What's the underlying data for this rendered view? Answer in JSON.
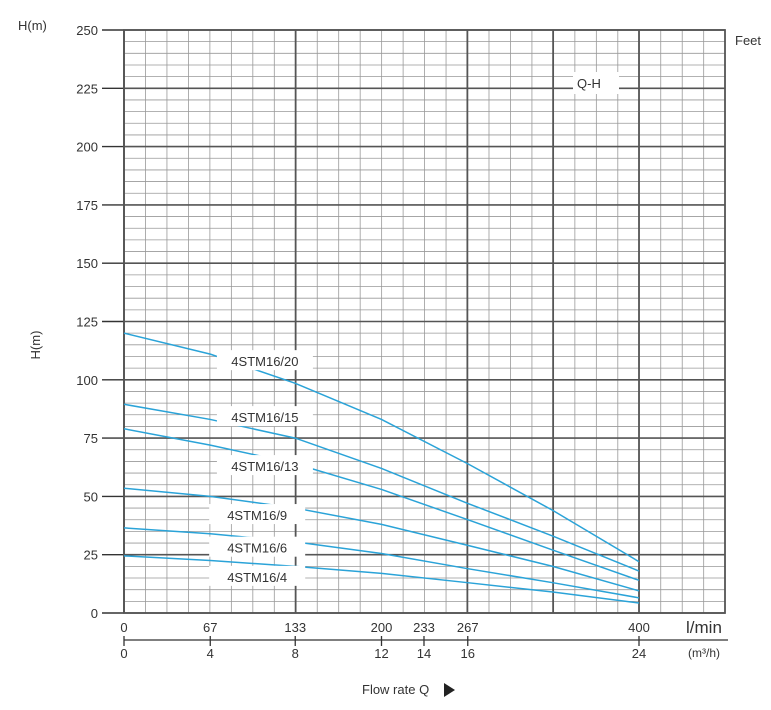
{
  "chart_data": {
    "type": "line",
    "title": "Q-H",
    "ylabel": "H(m)",
    "ylabel_top": "H(m)",
    "right_label": "Feet",
    "xlabel": "Flow rate Q",
    "x_unit": "l/min",
    "x2_unit": "(m³/h)",
    "ylim": [
      0,
      250
    ],
    "xlim": [
      0,
      467
    ],
    "yticks": [
      0,
      25,
      50,
      75,
      100,
      125,
      150,
      175,
      200,
      225,
      250
    ],
    "xticks": [
      0,
      67,
      133,
      200,
      233,
      267,
      400
    ],
    "x2ticks": [
      {
        "label": "0",
        "lpm": 0
      },
      {
        "label": "4",
        "lpm": 67
      },
      {
        "label": "8",
        "lpm": 133
      },
      {
        "label": "12",
        "lpm": 200
      },
      {
        "label": "14",
        "lpm": 233
      },
      {
        "label": "16",
        "lpm": 267
      },
      {
        "label": "24",
        "lpm": 400
      }
    ],
    "grid": true,
    "series": [
      {
        "name": "4STM16/20",
        "x": [
          0,
          67,
          133,
          200,
          267,
          333,
          400
        ],
        "y": [
          120,
          111,
          98.5,
          83,
          64,
          44,
          22
        ],
        "label_at": [
          111,
          108
        ]
      },
      {
        "name": "4STM16/15",
        "x": [
          0,
          67,
          133,
          200,
          267,
          333,
          400
        ],
        "y": [
          89.5,
          83,
          75,
          62,
          47,
          33,
          18
        ],
        "label_at": [
          111,
          84
        ]
      },
      {
        "name": "4STM16/13",
        "x": [
          0,
          67,
          133,
          200,
          267,
          333,
          400
        ],
        "y": [
          79,
          72,
          64,
          53,
          40,
          27,
          14
        ],
        "label_at": [
          111,
          63
        ]
      },
      {
        "name": "4STM16/9",
        "x": [
          0,
          67,
          133,
          200,
          267,
          333,
          400
        ],
        "y": [
          53.5,
          50,
          45,
          38,
          29,
          20,
          9.5
        ],
        "label_at": [
          105,
          42
        ]
      },
      {
        "name": "4STM16/6",
        "x": [
          0,
          67,
          133,
          200,
          267,
          333,
          400
        ],
        "y": [
          36.5,
          34,
          30.5,
          25.5,
          19,
          13,
          6.5
        ],
        "label_at": [
          105,
          28
        ]
      },
      {
        "name": "4STM16/4",
        "x": [
          0,
          67,
          133,
          200,
          267,
          333,
          400
        ],
        "y": [
          24.5,
          22.5,
          20,
          17,
          13,
          9,
          4.3
        ],
        "label_at": [
          105,
          15.5
        ]
      }
    ],
    "line_color": "#2aa3d8"
  }
}
